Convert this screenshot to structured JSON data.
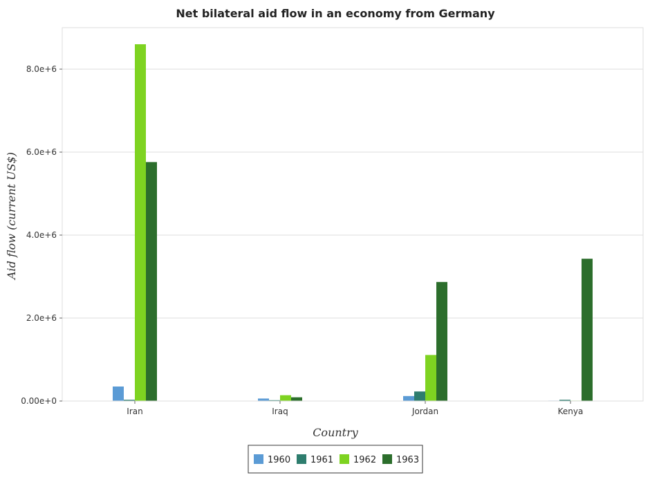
{
  "chart_data": {
    "type": "bar",
    "title": "Net bilateral aid flow in an economy from Germany",
    "xlabel": "Country",
    "ylabel": "Aid flow (current US$)",
    "categories": [
      "Iran",
      "Iraq",
      "Jordan",
      "Kenya"
    ],
    "series": [
      {
        "name": "1960",
        "color": "#5b9bd5",
        "values": [
          350000,
          60000,
          120000,
          10000
        ]
      },
      {
        "name": "1961",
        "color": "#2e7d6e",
        "values": [
          30000,
          20000,
          230000,
          30000
        ]
      },
      {
        "name": "1962",
        "color": "#7ed321",
        "values": [
          8600000,
          140000,
          1110000,
          10000
        ]
      },
      {
        "name": "1963",
        "color": "#2c6e2c",
        "values": [
          5760000,
          90000,
          2870000,
          3430000
        ]
      }
    ],
    "yticks": [
      0,
      2000000,
      4000000,
      6000000,
      8000000
    ],
    "ytick_labels": [
      "0.00e+0",
      "2.0e+6",
      "4.0e+6",
      "6.0e+6",
      "8.0e+6"
    ],
    "ylim": [
      0,
      9000000
    ],
    "grid": true,
    "legend_position": "bottom-center"
  }
}
